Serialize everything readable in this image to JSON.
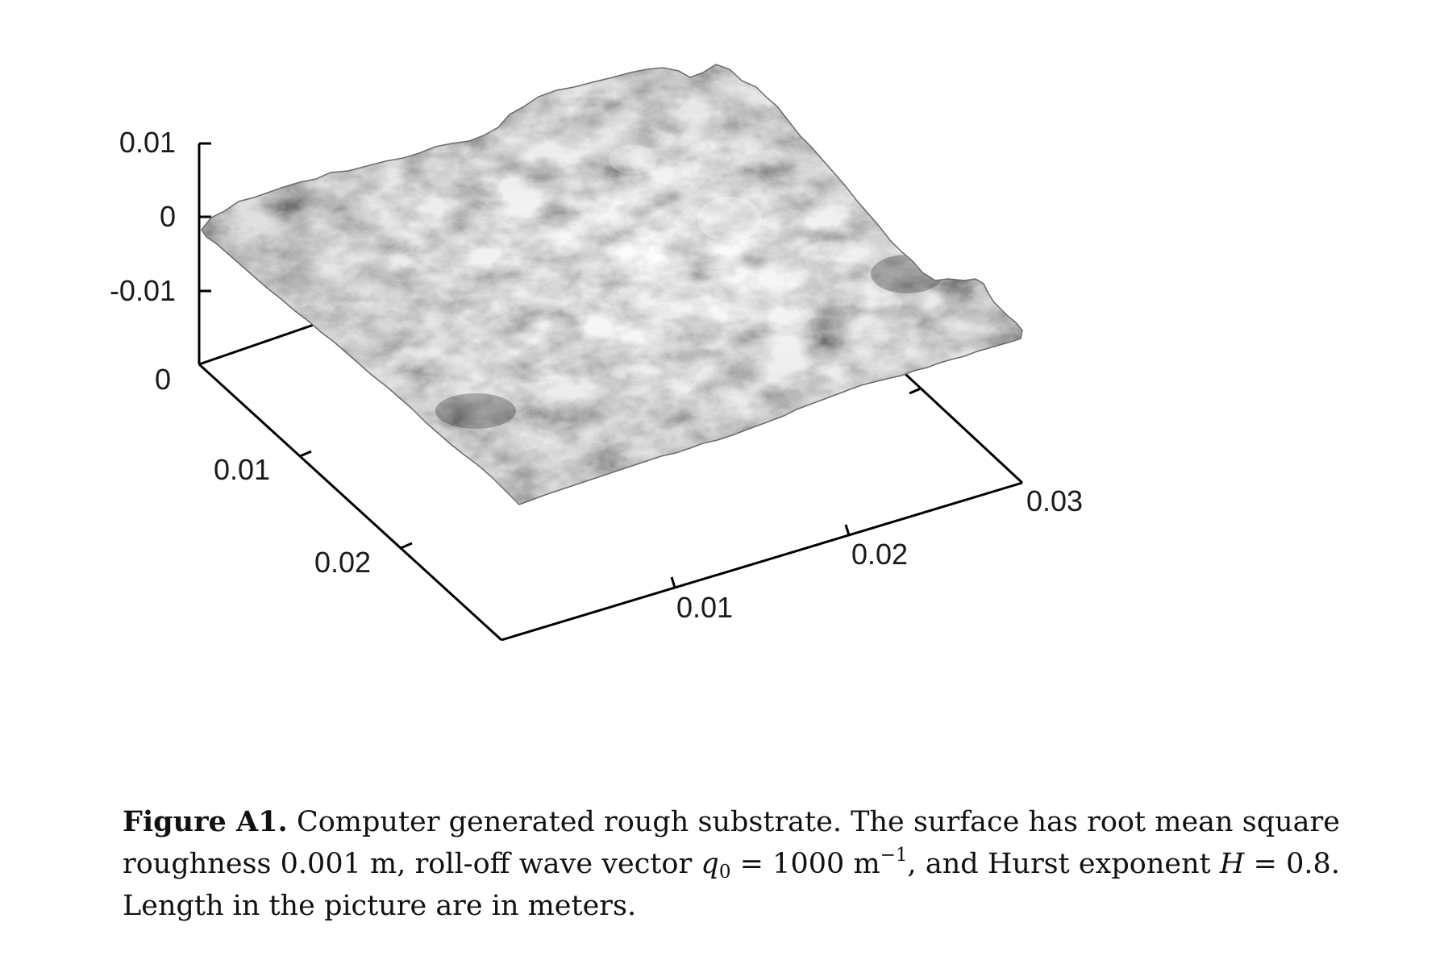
{
  "figure": {
    "z_ticks": [
      "0.01",
      "0",
      "-0.01"
    ],
    "base_tick": "0",
    "y_ticks": [
      "0.01",
      "0.02"
    ],
    "x_ticks": [
      "0.01",
      "0.02"
    ],
    "corner_tick": "0.03",
    "surface_colormap": "grayscale",
    "surface_description_color_low": "#2b2b2b",
    "surface_description_color_high": "#f2f2f2"
  },
  "caption": {
    "label": "Figure A1.",
    "text1": "Computer generated rough substrate. The surface has root mean square roughness 0.001 m, roll-off wave vector",
    "q0_symbol": "q",
    "q0_subscript": "0",
    "eq1": "= 1000 m",
    "exp": "−1",
    "text2": ", and Hurst exponent",
    "H_symbol": "H",
    "eq2": "= 0.8.",
    "text3": "Length in the picture are in meters."
  }
}
